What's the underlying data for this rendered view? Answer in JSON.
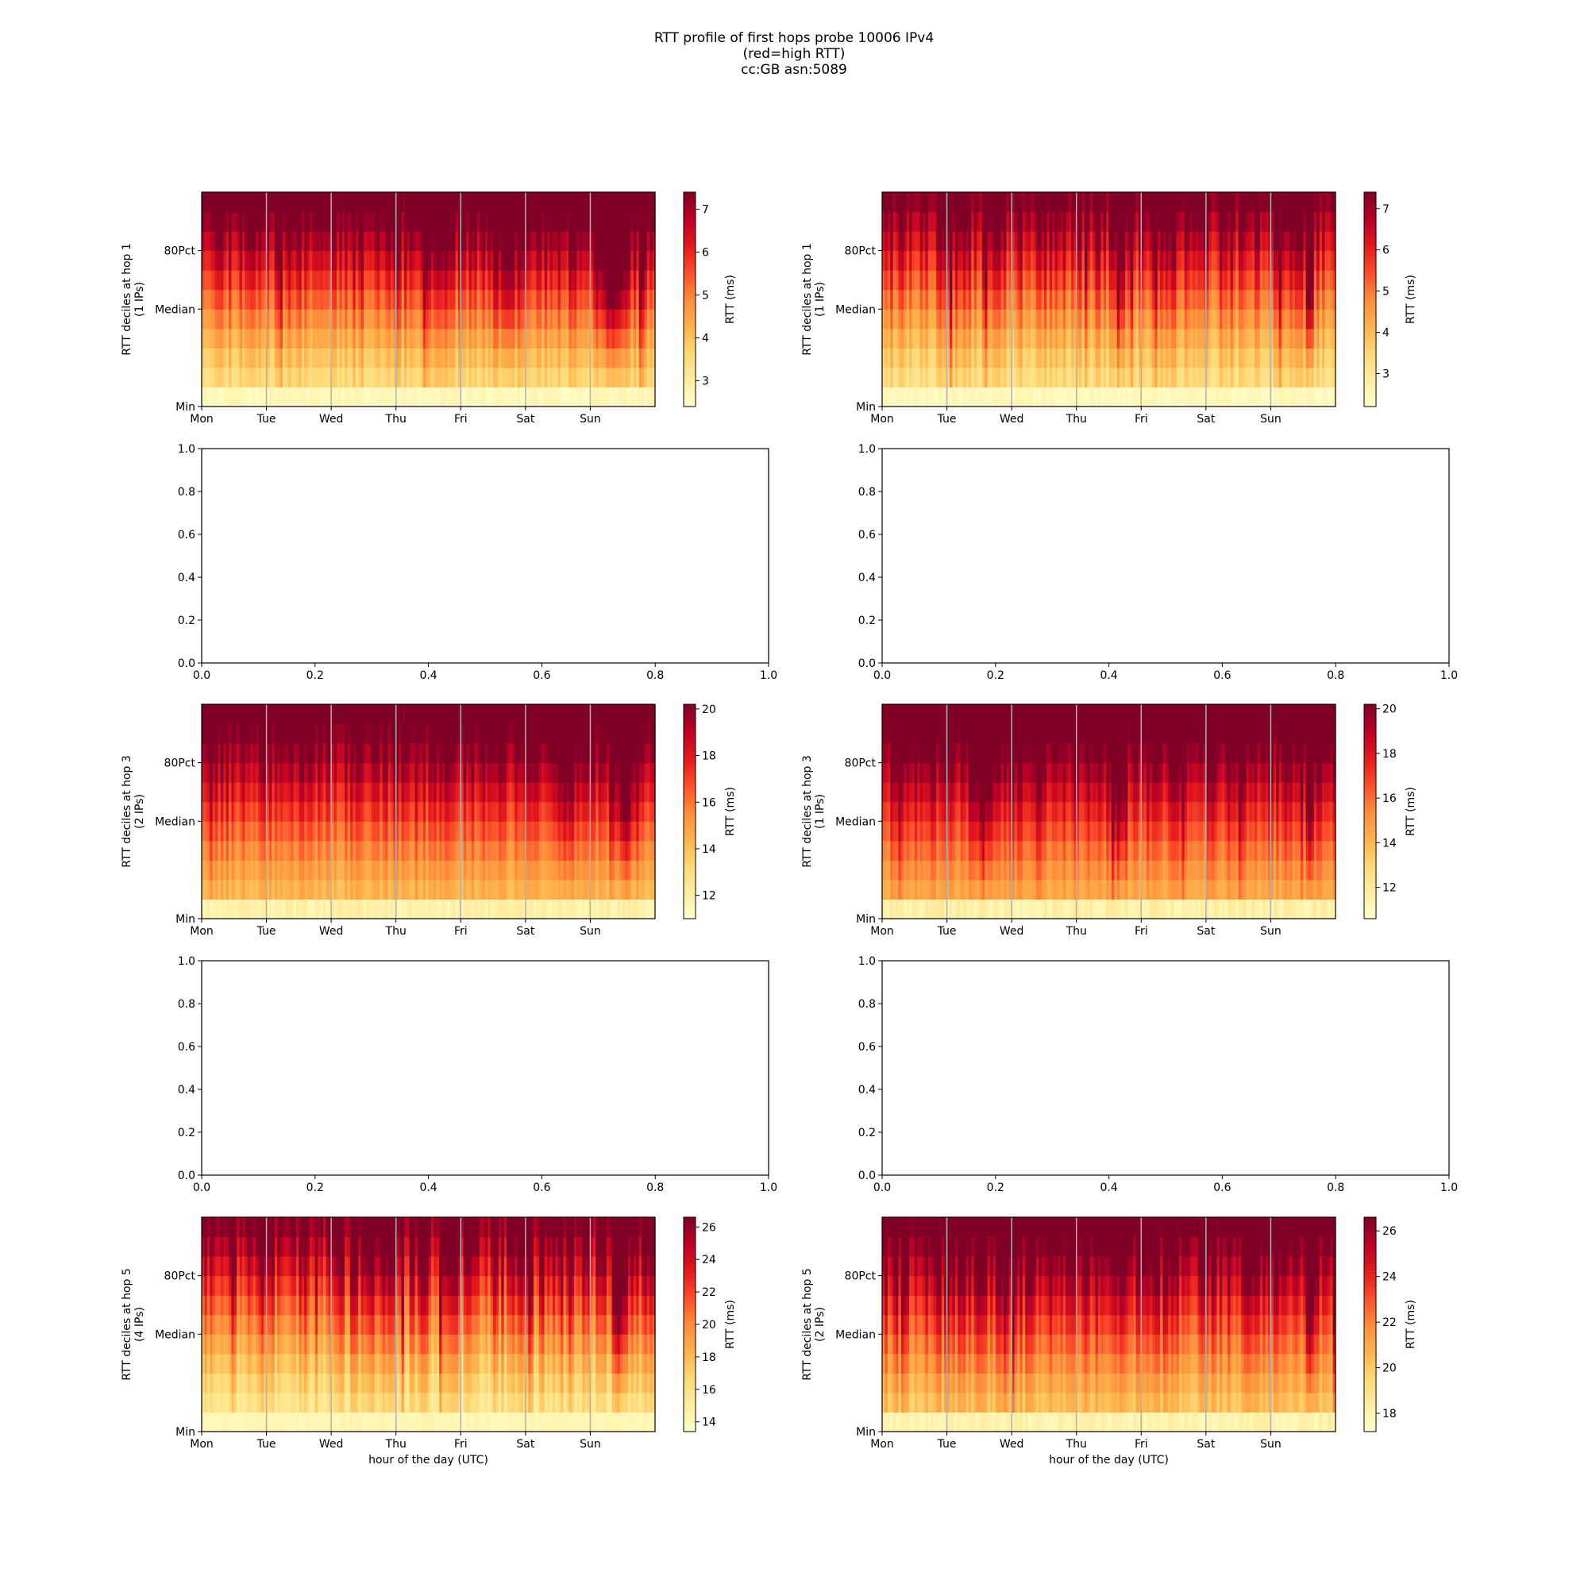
{
  "figure": {
    "title_lines": [
      "RTT profile of first hops probe 10006 IPv4",
      "(red=high RTT)",
      "cc:GB asn:5089"
    ]
  },
  "palette": {
    "colormap": [
      "#ffffcc",
      "#ffeda0",
      "#fed976",
      "#feb24c",
      "#fd8d3c",
      "#fc4e2a",
      "#e31a1c",
      "#bd0026",
      "#800026"
    ]
  },
  "chart_data": [
    {
      "type": "heatmap",
      "panel": "hop1-left",
      "ylabel_lines": [
        "RTT deciles at hop 1",
        "(1 IPs)"
      ],
      "xlabel": "",
      "x_ticks": [
        "Mon",
        "Tue",
        "Wed",
        "Thu",
        "Fri",
        "Sat",
        "Sun"
      ],
      "y_ticks": [
        "Min",
        "Median",
        "80Pct"
      ],
      "colorbar": {
        "label": "RTT (ms)",
        "ticks": [
          3,
          4,
          5,
          6,
          7
        ],
        "range": [
          2.4,
          7.4
        ]
      },
      "columns": 168,
      "seed": 11,
      "profile": {
        "d0": 2.5,
        "d1": 3.4,
        "d9": 8.4,
        "cmax": 7.4,
        "noise": 0.7,
        "spikes": [
          [
            0.67,
            0.03,
            1.4
          ],
          [
            0.9,
            0.05,
            2.0
          ]
        ]
      },
      "grid_lines": true
    },
    {
      "type": "heatmap",
      "panel": "hop1-right",
      "ylabel_lines": [
        "RTT deciles at hop 1",
        "(1 IPs)"
      ],
      "xlabel": "",
      "x_ticks": [
        "Mon",
        "Tue",
        "Wed",
        "Thu",
        "Fri",
        "Sat",
        "Sun"
      ],
      "y_ticks": [
        "Min",
        "Median",
        "80Pct"
      ],
      "colorbar": {
        "label": "RTT (ms)",
        "ticks": [
          3,
          4,
          5,
          6,
          7
        ],
        "range": [
          2.2,
          7.4
        ]
      },
      "columns": 168,
      "seed": 23,
      "profile": {
        "d0": 2.3,
        "d1": 3.2,
        "d9": 8.0,
        "cmax": 7.4,
        "noise": 0.8,
        "spikes": [
          [
            0.52,
            0.01,
            2.0
          ],
          [
            0.94,
            0.01,
            3.0
          ]
        ]
      },
      "grid_lines": true
    },
    {
      "type": "empty",
      "panel": "hop2-left",
      "x_ticks": [
        "0.0",
        "0.2",
        "0.4",
        "0.6",
        "0.8",
        "1.0"
      ],
      "y_ticks": [
        "0.0",
        "0.2",
        "0.4",
        "0.6",
        "0.8",
        "1.0"
      ],
      "xlim": [
        0,
        1
      ],
      "ylim": [
        0,
        1
      ]
    },
    {
      "type": "empty",
      "panel": "hop2-right",
      "x_ticks": [
        "0.0",
        "0.2",
        "0.4",
        "0.6",
        "0.8",
        "1.0"
      ],
      "y_ticks": [
        "0.0",
        "0.2",
        "0.4",
        "0.6",
        "0.8",
        "1.0"
      ],
      "xlim": [
        0,
        1
      ],
      "ylim": [
        0,
        1
      ]
    },
    {
      "type": "heatmap",
      "panel": "hop3-left",
      "ylabel_lines": [
        "RTT deciles at hop 3",
        "(2 IPs)"
      ],
      "xlabel": "",
      "x_ticks": [
        "Mon",
        "Tue",
        "Wed",
        "Thu",
        "Fri",
        "Sat",
        "Sun"
      ],
      "y_ticks": [
        "Min",
        "Median",
        "80Pct"
      ],
      "colorbar": {
        "label": "RTT (ms)",
        "ticks": [
          12,
          14,
          16,
          18,
          20
        ],
        "range": [
          11.0,
          20.2
        ]
      },
      "columns": 168,
      "seed": 37,
      "profile": {
        "d0": 11.4,
        "d1": 14.0,
        "d9": 22.0,
        "cmax": 20.2,
        "noise": 1.1,
        "spikes": [
          [
            0.8,
            0.03,
            2.0
          ],
          [
            0.93,
            0.04,
            3.0
          ]
        ]
      },
      "grid_lines": true
    },
    {
      "type": "heatmap",
      "panel": "hop3-right",
      "ylabel_lines": [
        "RTT deciles at hop 3",
        "(1 IPs)"
      ],
      "xlabel": "",
      "x_ticks": [
        "Mon",
        "Tue",
        "Wed",
        "Thu",
        "Fri",
        "Sat",
        "Sun"
      ],
      "y_ticks": [
        "Min",
        "Median",
        "80Pct"
      ],
      "colorbar": {
        "label": "RTT (ms)",
        "ticks": [
          12,
          14,
          16,
          18,
          20
        ],
        "range": [
          10.6,
          20.2
        ]
      },
      "columns": 168,
      "seed": 41,
      "profile": {
        "d0": 11.0,
        "d1": 14.2,
        "d9": 22.5,
        "cmax": 20.2,
        "noise": 1.2,
        "spikes": [
          [
            0.22,
            0.03,
            3.0
          ],
          [
            0.52,
            0.02,
            3.0
          ],
          [
            0.94,
            0.01,
            4.0
          ]
        ]
      },
      "grid_lines": true
    },
    {
      "type": "empty",
      "panel": "hop4-left",
      "x_ticks": [
        "0.0",
        "0.2",
        "0.4",
        "0.6",
        "0.8",
        "1.0"
      ],
      "y_ticks": [
        "0.0",
        "0.2",
        "0.4",
        "0.6",
        "0.8",
        "1.0"
      ],
      "xlim": [
        0,
        1
      ],
      "ylim": [
        0,
        1
      ]
    },
    {
      "type": "empty",
      "panel": "hop4-right",
      "x_ticks": [
        "0.0",
        "0.2",
        "0.4",
        "0.6",
        "0.8",
        "1.0"
      ],
      "y_ticks": [
        "0.0",
        "0.2",
        "0.4",
        "0.6",
        "0.8",
        "1.0"
      ],
      "xlim": [
        0,
        1
      ],
      "ylim": [
        0,
        1
      ]
    },
    {
      "type": "heatmap",
      "panel": "hop5-left",
      "ylabel_lines": [
        "RTT deciles at hop 5",
        "(4 IPs)"
      ],
      "xlabel": "hour of the day (UTC)",
      "x_ticks": [
        "Mon",
        "Tue",
        "Wed",
        "Thu",
        "Fri",
        "Sat",
        "Sun"
      ],
      "y_ticks": [
        "Min",
        "Median",
        "80Pct"
      ],
      "colorbar": {
        "label": "RTT (ms)",
        "ticks": [
          14,
          16,
          18,
          20,
          22,
          24,
          26
        ],
        "range": [
          13.4,
          26.6
        ]
      },
      "columns": 168,
      "seed": 53,
      "profile": {
        "d0": 14.0,
        "d1": 15.5,
        "d9": 28.0,
        "cmax": 26.6,
        "noise": 2.6,
        "spikes": [
          [
            0.92,
            0.03,
            4.0
          ]
        ]
      },
      "grid_lines": true
    },
    {
      "type": "heatmap",
      "panel": "hop5-right",
      "ylabel_lines": [
        "RTT deciles at hop 5",
        "(2 IPs)"
      ],
      "xlabel": "hour of the day (UTC)",
      "x_ticks": [
        "Mon",
        "Tue",
        "Wed",
        "Thu",
        "Fri",
        "Sat",
        "Sun"
      ],
      "y_ticks": [
        "Min",
        "Median",
        "80Pct"
      ],
      "colorbar": {
        "label": "RTT (ms)",
        "ticks": [
          18,
          20,
          22,
          24,
          26
        ],
        "range": [
          17.2,
          26.6
        ]
      },
      "columns": 168,
      "seed": 67,
      "profile": {
        "d0": 17.6,
        "d1": 20.0,
        "d9": 28.5,
        "cmax": 26.6,
        "noise": 1.5,
        "spikes": [
          [
            0.94,
            0.01,
            4.0
          ]
        ]
      },
      "grid_lines": true
    }
  ]
}
